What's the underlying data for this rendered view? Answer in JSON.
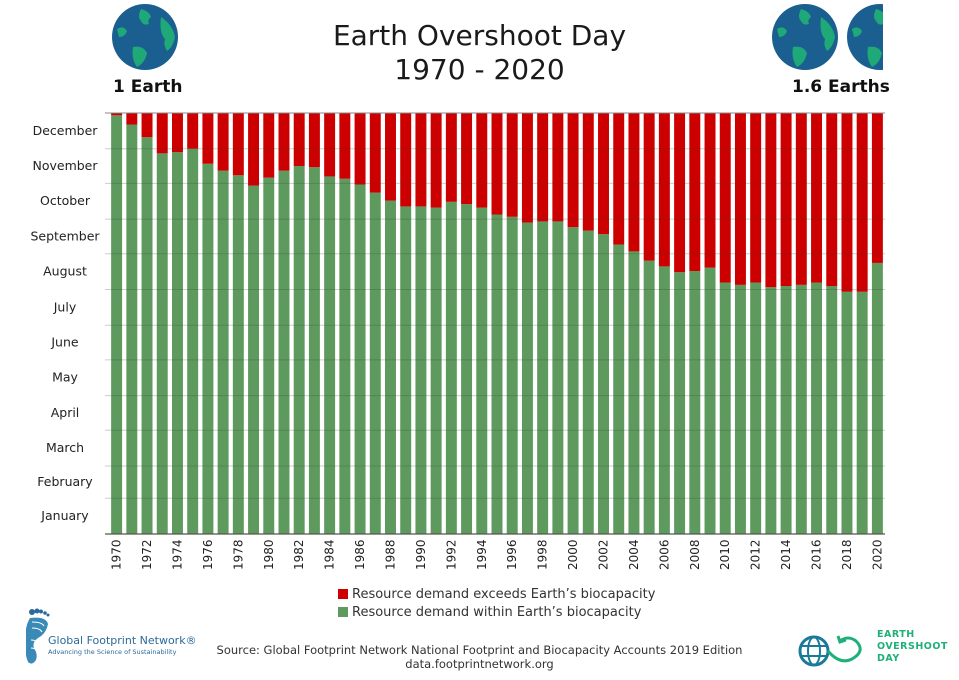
{
  "header": {
    "title_line1": "Earth Overshoot Day",
    "title_line2": "1970 - 2020",
    "left_globe_label": "1 Earth",
    "right_globe_label": "1.6 Earths"
  },
  "colors": {
    "overshoot": "#cc0000",
    "within": "#5e9a5e",
    "globe_ocean": "#1a5f8f",
    "globe_land": "#1fa878",
    "eod_green": "#1fb079",
    "gfn_blue": "#2a6a9a"
  },
  "chart_data": {
    "type": "bar",
    "title": "Earth Overshoot Day 1970 - 2020",
    "xlabel": "",
    "ylabel": "",
    "stacked": true,
    "ylim_day_of_year": [
      0,
      365
    ],
    "y_tick_labels": [
      "January",
      "February",
      "March",
      "April",
      "May",
      "June",
      "July",
      "August",
      "September",
      "October",
      "November",
      "December"
    ],
    "x_tick_labels": [
      "1970",
      "1972",
      "1974",
      "1976",
      "1978",
      "1980",
      "1982",
      "1984",
      "1986",
      "1988",
      "1990",
      "1992",
      "1994",
      "1996",
      "1998",
      "2000",
      "2002",
      "2004",
      "2006",
      "2008",
      "2010",
      "2012",
      "2014",
      "2016",
      "2018",
      "2020"
    ],
    "categories": [
      "1970",
      "1971",
      "1972",
      "1973",
      "1974",
      "1975",
      "1976",
      "1977",
      "1978",
      "1979",
      "1980",
      "1981",
      "1982",
      "1983",
      "1984",
      "1985",
      "1986",
      "1987",
      "1988",
      "1989",
      "1990",
      "1991",
      "1992",
      "1993",
      "1994",
      "1995",
      "1996",
      "1997",
      "1998",
      "1999",
      "2000",
      "2001",
      "2002",
      "2003",
      "2004",
      "2005",
      "2006",
      "2007",
      "2008",
      "2009",
      "2010",
      "2011",
      "2012",
      "2013",
      "2014",
      "2015",
      "2016",
      "2017",
      "2018",
      "2019",
      "2020"
    ],
    "overshoot_dates": [
      "Dec 29",
      "Dec 21",
      "Dec 10",
      "Nov 26",
      "Nov 27",
      "Nov 30",
      "Nov 16",
      "Nov 11",
      "Nov 7",
      "Oct 29",
      "Nov 4",
      "Nov 11",
      "Nov 15",
      "Nov 14",
      "Nov 6",
      "Nov 4",
      "Oct 30",
      "Oct 23",
      "Oct 15",
      "Oct 11",
      "Oct 11",
      "Oct 10",
      "Oct 14",
      "Oct 13",
      "Oct 10",
      "Oct 4",
      "Oct 1",
      "Sep 27",
      "Sep 28",
      "Sep 28",
      "Sep 22",
      "Sep 20",
      "Sep 17",
      "Sep 8",
      "Sep 1",
      "Aug 25",
      "Aug 20",
      "Aug 15",
      "Aug 16",
      "Aug 19",
      "Aug 6",
      "Aug 4",
      "Aug 5",
      "Aug 2",
      "Aug 3",
      "Aug 4",
      "Aug 5",
      "Aug 3",
      "Jul 29",
      "Jul 29",
      "Aug 22"
    ],
    "series": [
      {
        "name": "Resource demand within Earth’s biocapacity",
        "color": "#5e9a5e",
        "values": [
          363,
          355,
          344,
          330,
          331,
          334,
          321,
          315,
          311,
          302,
          309,
          315,
          319,
          318,
          310,
          308,
          303,
          296,
          289,
          284,
          284,
          283,
          288,
          286,
          283,
          277,
          275,
          270,
          271,
          271,
          266,
          263,
          260,
          251,
          245,
          237,
          232,
          227,
          228,
          231,
          218,
          216,
          218,
          214,
          215,
          216,
          218,
          215,
          210,
          210,
          235
        ]
      },
      {
        "name": "Resource demand exceeds Earth’s biocapacity",
        "color": "#cc0000",
        "values": [
          2,
          10,
          21,
          35,
          34,
          31,
          44,
          50,
          54,
          63,
          56,
          50,
          46,
          47,
          55,
          57,
          62,
          69,
          76,
          81,
          81,
          82,
          77,
          79,
          82,
          88,
          90,
          95,
          94,
          94,
          99,
          102,
          105,
          114,
          120,
          128,
          133,
          138,
          137,
          134,
          147,
          149,
          147,
          151,
          150,
          149,
          147,
          150,
          155,
          155,
          130
        ]
      }
    ],
    "legend": [
      "Resource demand exceeds Earth’s biocapacity",
      "Resource demand within Earth’s biocapacity"
    ],
    "legend_position": "bottom-center",
    "grid": true
  },
  "footer": {
    "source_line1": "Source: Global Footprint Network National Footprint and Biocapacity Accounts 2019 Edition",
    "source_line2": "data.footprintnetwork.org",
    "gfn_logo_name": "Global Footprint Network®",
    "gfn_logo_tagline": "Advancing the Science of Sustainability",
    "eod_logo_line1": "EARTH",
    "eod_logo_line2": "OVERSHOOT",
    "eod_logo_line3": "DAY"
  },
  "icons": {
    "left_globe": "earth-globe-icon",
    "right_globes": "earth-globe-icon",
    "gfn_logo": "footprint-icon",
    "eod_logo": "globe-infinity-arrow-icon"
  }
}
